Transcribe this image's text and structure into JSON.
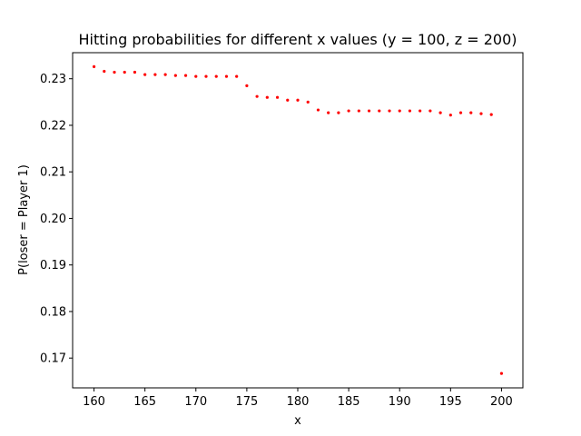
{
  "chart_data": {
    "type": "scatter",
    "title": "Hitting probabilities for different x values (y = 100, z = 200)",
    "xlabel": "x",
    "ylabel": "P(loser = Player 1)",
    "xlim": [
      157.9,
      202.1
    ],
    "ylim": [
      0.1636,
      0.2356
    ],
    "xticks": [
      160,
      165,
      170,
      175,
      180,
      185,
      190,
      195,
      200
    ],
    "xtick_labels": [
      "160",
      "165",
      "170",
      "175",
      "180",
      "185",
      "190",
      "195",
      "200"
    ],
    "yticks": [
      0.17,
      0.18,
      0.19,
      0.2,
      0.21,
      0.22,
      0.23
    ],
    "ytick_labels": [
      "0.17",
      "0.18",
      "0.19",
      "0.20",
      "0.21",
      "0.22",
      "0.23"
    ],
    "grid": false,
    "legend": "none",
    "point_color": "#ff0000",
    "series": [
      {
        "x": [
          160,
          161,
          162,
          163,
          164,
          165,
          166,
          167,
          168,
          169,
          170,
          171,
          172,
          173,
          174,
          175,
          176,
          177,
          178,
          179,
          180,
          181,
          182,
          183,
          184,
          185,
          186,
          187,
          188,
          189,
          190,
          191,
          192,
          193,
          194,
          195,
          196,
          197,
          198,
          199,
          200
        ],
        "y": [
          0.2326,
          0.2316,
          0.2314,
          0.2314,
          0.2314,
          0.2309,
          0.2309,
          0.2309,
          0.2307,
          0.2307,
          0.2305,
          0.2305,
          0.2305,
          0.2305,
          0.2305,
          0.2285,
          0.2262,
          0.226,
          0.226,
          0.2254,
          0.2254,
          0.225,
          0.2233,
          0.2227,
          0.2227,
          0.2231,
          0.2231,
          0.2231,
          0.2231,
          0.2231,
          0.2231,
          0.2231,
          0.2231,
          0.2231,
          0.2227,
          0.2222,
          0.2227,
          0.2227,
          0.2225,
          0.2223,
          0.1667
        ]
      }
    ]
  }
}
